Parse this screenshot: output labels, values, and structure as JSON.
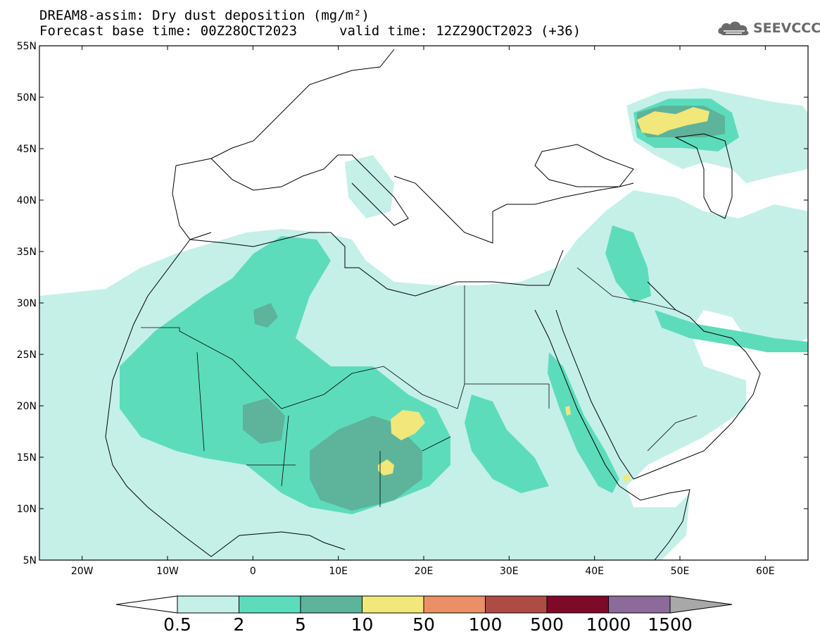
{
  "header": {
    "title": "DREAM8-assim: Dry dust deposition (mg/m²)",
    "base_time": "Forecast base time: 00Z28OCT2023",
    "valid_time": "valid time: 12Z29OCT2023 (+36)",
    "logo_text": "SEEVCCC"
  },
  "map": {
    "lat_labels": [
      "55N",
      "50N",
      "45N",
      "40N",
      "35N",
      "30N",
      "25N",
      "20N",
      "15N",
      "10N",
      "5N"
    ],
    "lon_labels": [
      "20W",
      "10W",
      "0",
      "10E",
      "20E",
      "30E",
      "40E",
      "50E",
      "60E"
    ],
    "lon_range": [
      -25,
      65
    ],
    "lat_range": [
      5,
      55
    ],
    "background_color": "#ffffff",
    "land_border_color": "#000000"
  },
  "colorbar": {
    "labels": [
      "0.5",
      "2",
      "5",
      "10",
      "50",
      "100",
      "500",
      "1000",
      "1500"
    ],
    "colors": [
      "#c4f0e8",
      "#5ddcbc",
      "#5db49a",
      "#f2e77a",
      "#ea9066",
      "#ae4c44",
      "#7d0a29",
      "#8c6a9a"
    ],
    "under_color": "#ffffff",
    "over_color": "#a8a8a8"
  }
}
